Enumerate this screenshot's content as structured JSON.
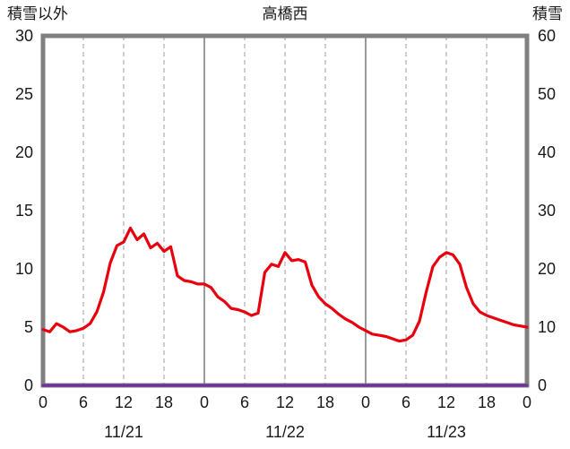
{
  "chart_data": {
    "type": "line",
    "title": "高橋西",
    "left_axis": {
      "label": "積雪以外",
      "min": 0,
      "max": 30,
      "step": 5,
      "tick_labels": [
        "0",
        "5",
        "10",
        "15",
        "20",
        "25",
        "30"
      ]
    },
    "right_axis": {
      "label": "積雪",
      "min": 0,
      "max": 60,
      "step": 10,
      "tick_labels": [
        "0",
        "10",
        "20",
        "30",
        "40",
        "50",
        "60"
      ]
    },
    "x_hours_span": 72,
    "x_tick_step": 6,
    "x_tick_labels": [
      "0",
      "6",
      "12",
      "18",
      "0",
      "6",
      "12",
      "18",
      "0",
      "6",
      "12",
      "18",
      "0"
    ],
    "date_labels": [
      "11/21",
      "11/22",
      "11/23"
    ],
    "date_label_center_hours": [
      12,
      36,
      60
    ],
    "grid": {
      "vertical_dashed_every_hours": 6,
      "vertical_solid_every_hours": 24,
      "horizontal": false,
      "frame_color": "#808080",
      "solid_line_color": "#808080",
      "dashed_line_color": "#a6a6a6"
    },
    "legend_position": "none",
    "series": [
      {
        "name": "積雪",
        "axis": "right",
        "color": "#7030a0",
        "values": [
          0,
          0,
          0,
          0,
          0,
          0,
          0,
          0,
          0,
          0,
          0,
          0,
          0,
          0,
          0,
          0,
          0,
          0,
          0,
          0,
          0,
          0,
          0,
          0,
          0,
          0,
          0,
          0,
          0,
          0,
          0,
          0,
          0,
          0,
          0,
          0,
          0,
          0,
          0,
          0,
          0,
          0,
          0,
          0,
          0,
          0,
          0,
          0,
          0,
          0,
          0,
          0,
          0,
          0,
          0,
          0,
          0,
          0,
          0,
          0,
          0,
          0,
          0,
          0,
          0,
          0,
          0,
          0,
          0,
          0,
          0,
          0,
          0
        ]
      },
      {
        "name": "積雪以外",
        "axis": "left",
        "color": "#e8000d",
        "values": [
          4.8,
          4.6,
          5.3,
          5.0,
          4.6,
          4.7,
          4.9,
          5.3,
          6.3,
          8.0,
          10.5,
          12.0,
          12.3,
          13.5,
          12.5,
          13.0,
          11.8,
          12.2,
          11.5,
          11.9,
          9.4,
          9.0,
          8.9,
          8.7,
          8.7,
          8.4,
          7.6,
          7.2,
          6.6,
          6.5,
          6.3,
          6.0,
          6.2,
          9.7,
          10.4,
          10.2,
          11.4,
          10.7,
          10.8,
          10.6,
          8.6,
          7.6,
          7.0,
          6.6,
          6.1,
          5.7,
          5.4,
          5.0,
          4.7,
          4.4,
          4.3,
          4.2,
          4.0,
          3.8,
          3.9,
          4.3,
          5.5,
          8.0,
          10.2,
          11.0,
          11.4,
          11.2,
          10.4,
          8.4,
          7.0,
          6.3,
          6.0,
          5.8,
          5.6,
          5.4,
          5.2,
          5.1,
          5.0
        ]
      }
    ]
  }
}
